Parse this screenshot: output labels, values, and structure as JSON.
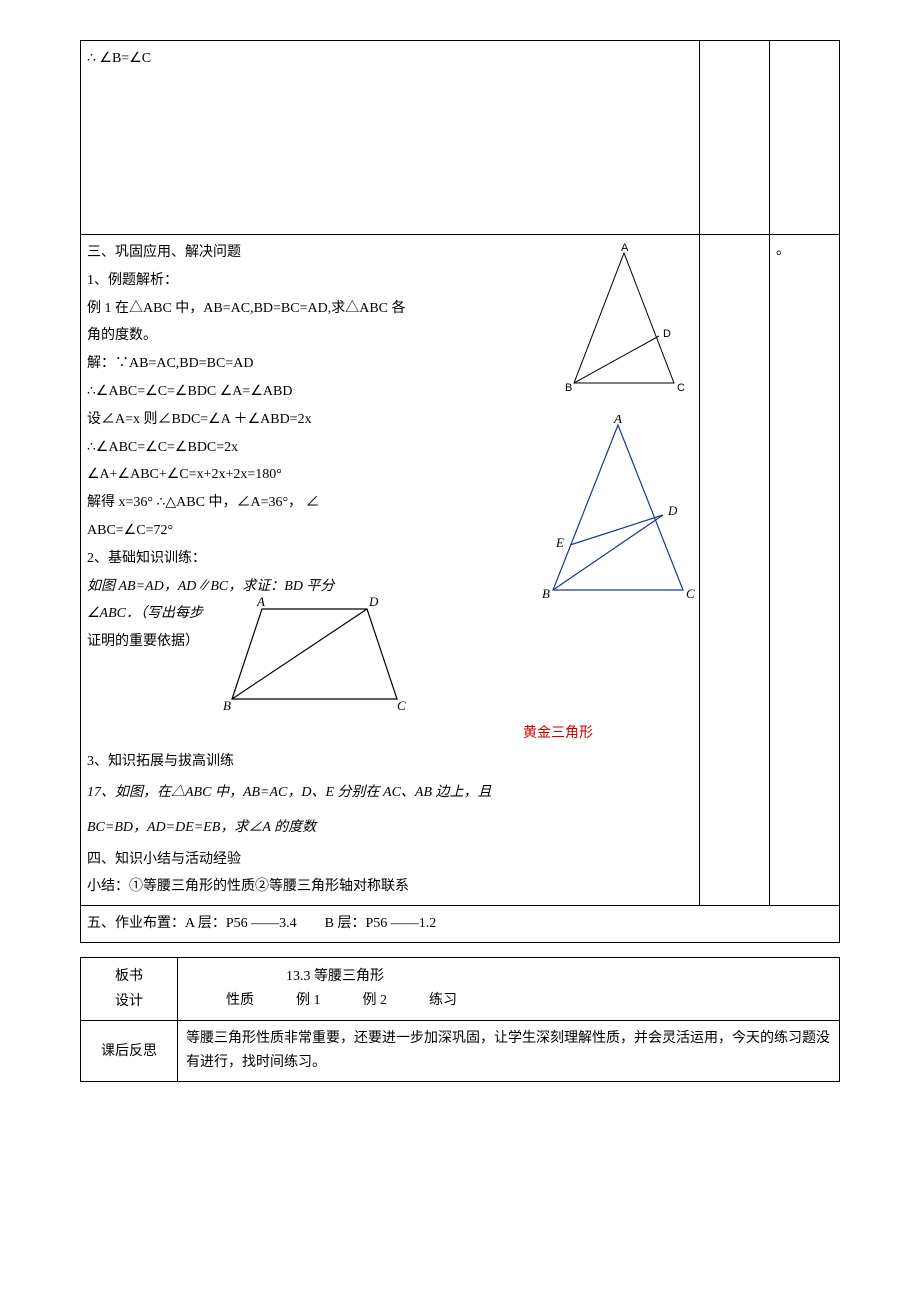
{
  "row1": {
    "line1": "∴ ∠B=∠C"
  },
  "row2": {
    "sec3_title": "三、巩固应用、解决问题",
    "p1_title": "1、例题解析：",
    "ex1_a": "例 1 在△ABC 中，AB=AC,BD=BC=AD,求△ABC 各",
    "ex1_b": "角的度数。",
    "sol1": "解：∵AB=AC,BD=BC=AD",
    "sol2": "∴∠ABC=∠C=∠BDC   ∠A=∠ABD",
    "sol3": "设∠A=x 则∠BDC=∠A ＋∠ABD=2x",
    "sol4": "∴∠ABC=∠C=∠BDC=2x",
    "sol5": "∠A+∠ABC+∠C=x+2x+2x=180°",
    "sol6": "解得 x=36° ∴△ABC 中，∠A=36°， ∠",
    "sol7": "ABC=∠C=72°",
    "p2_title": "2、基础知识训练：",
    "p2_line1": "如图 AB=AD，AD∥BC，求证：BD 平分",
    "p2_line2": "∠ABC．（写出每步",
    "p2_line3": "证明的重要依据）",
    "golden_label": "黄金三角形",
    "p3_title": "3、知识拓展与拔高训练",
    "p3_line1": "17、如图，在△ABC 中，AB=AC，D、E 分别在 AC、AB 边上，且",
    "p3_line2": "BC=BD，AD=DE=EB，求∠A 的度数",
    "sec4_title": "四、知识小结与活动经验",
    "sec4_line": "小结：①等腰三角形的性质②等腰三角形轴对称联系",
    "narrow2_text": "。",
    "fig1": {
      "A": "A",
      "B": "B",
      "C": "C",
      "D": "D",
      "stroke": "#000000",
      "fill": "none"
    },
    "fig2": {
      "A": "A",
      "B": "B",
      "C": "C",
      "D": "D",
      "E": "E",
      "stroke": "#1a3a8a",
      "fill": "none"
    },
    "fig3": {
      "A": "A",
      "B": "B",
      "C": "C",
      "D": "D",
      "stroke": "#000000",
      "fill": "none"
    }
  },
  "row3": {
    "text": "五、作业布置：A 层：P56 ——3.4　　B 层：P56 ——1.2"
  },
  "inner_table": {
    "r1_label": "板书\n设计",
    "r1_title": "13.3 等腰三角形",
    "r1_line": "性质　　　例 1　　　例 2　　　练习",
    "r2_label": "课后反思",
    "r2_text": "等腰三角形性质非常重要，还要进一步加深巩固，让学生深刻理解性质，并会灵活运用，今天的练习题没有进行，找时间练习。"
  }
}
